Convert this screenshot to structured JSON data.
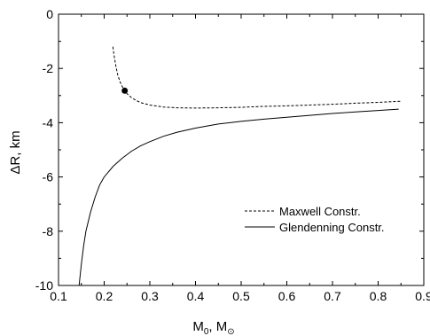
{
  "chart_data": {
    "type": "line",
    "title": "",
    "xlabel": "M",
    "xlabel_sub": "0",
    "xlabel_sep": ",  M",
    "xlabel_sub2": "⊙",
    "ylabel": "ΔR, km",
    "xlim": [
      0.1,
      0.9
    ],
    "ylim": [
      -10,
      0
    ],
    "xticks": [
      0.1,
      0.2,
      0.3,
      0.4,
      0.5,
      0.6,
      0.7,
      0.8,
      0.9
    ],
    "xtick_labels": [
      "0.1",
      "0.2",
      "0.3",
      "0.4",
      "0.5",
      "0.6",
      "0.7",
      "0.8",
      "0.9"
    ],
    "yticks": [
      0,
      -2,
      -4,
      -6,
      -8,
      -10
    ],
    "ytick_labels": [
      "0",
      "-2",
      "-4",
      "-6",
      "-8",
      "-10"
    ],
    "grid": false,
    "legend_position": "lower-right",
    "series": [
      {
        "name": "Maxwell Constr.",
        "style": "dashed",
        "color": "#000000",
        "x": [
          0.219,
          0.222,
          0.226,
          0.23,
          0.235,
          0.24,
          0.245,
          0.25,
          0.26,
          0.27,
          0.28,
          0.3,
          0.33,
          0.36,
          0.4,
          0.45,
          0.5,
          0.55,
          0.6,
          0.65,
          0.7,
          0.75,
          0.8,
          0.85
        ],
        "y": [
          -1.2,
          -1.55,
          -1.95,
          -2.25,
          -2.5,
          -2.68,
          -2.82,
          -2.93,
          -3.08,
          -3.18,
          -3.26,
          -3.35,
          -3.42,
          -3.45,
          -3.46,
          -3.45,
          -3.43,
          -3.4,
          -3.38,
          -3.35,
          -3.32,
          -3.28,
          -3.25,
          -3.21
        ]
      },
      {
        "name": "Glendenning Constr.",
        "style": "solid",
        "color": "#000000",
        "x": [
          0.145,
          0.15,
          0.155,
          0.16,
          0.17,
          0.18,
          0.19,
          0.2,
          0.22,
          0.24,
          0.26,
          0.28,
          0.3,
          0.33,
          0.36,
          0.4,
          0.45,
          0.5,
          0.55,
          0.6,
          0.65,
          0.7,
          0.75,
          0.8,
          0.845
        ],
        "y": [
          -10.0,
          -9.2,
          -8.55,
          -8.0,
          -7.3,
          -6.75,
          -6.3,
          -6.0,
          -5.6,
          -5.3,
          -5.05,
          -4.85,
          -4.7,
          -4.5,
          -4.35,
          -4.2,
          -4.05,
          -3.95,
          -3.87,
          -3.8,
          -3.73,
          -3.66,
          -3.6,
          -3.55,
          -3.5
        ]
      }
    ],
    "markers": [
      {
        "x": 0.245,
        "y": -2.82,
        "color": "#000000"
      }
    ]
  }
}
